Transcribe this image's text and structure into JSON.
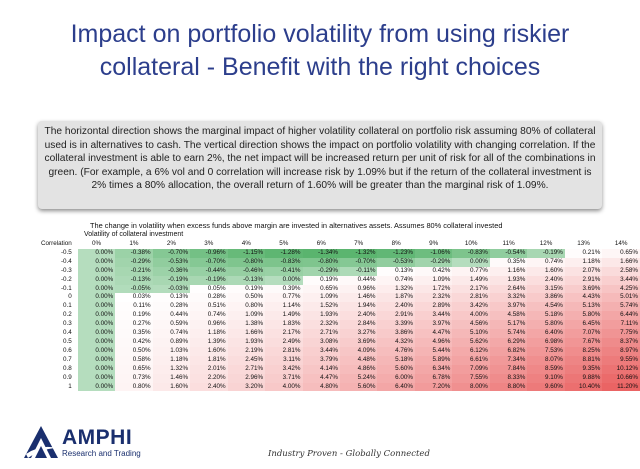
{
  "title_lines": [
    "Impact on portfolio volatility from using riskier",
    "collateral - Benefit with the right choices"
  ],
  "description": "The horizontal direction shows the marginal impact of higher volatility collateral on portfolio risk assuming 80% of collateral used is in alternatives to cash. The vertical direction shows the impact on portfolio volatility with changing correlation. If the collateral investment is able to earn 2%, the net impact will be increased return per unit of risk for all of the combinations in green. (For example, a 6% vol and 0 correlation will increase risk by 1.09% but if the return of the collateral investment is 2% times a 80% allocation, the overall return of 1.60% will be greater than the marginal risk of 1.09%.",
  "table_caption": "The change in volatility when excess funds above margin are invested in alternatives assets. Assumes 80% collateral invested",
  "table_subcaption": "Volatility of collateral investment",
  "table": {
    "corner_label": "Correlation",
    "columns": [
      "0%",
      "1%",
      "2%",
      "3%",
      "4%",
      "5%",
      "6%",
      "7%",
      "8%",
      "9%",
      "10%",
      "11%",
      "12%",
      "13%",
      "14%"
    ],
    "rows": [
      {
        "label": "-0.5",
        "values": [
          "0.00%",
          "-0.38%",
          "-0.70%",
          "-0.96%",
          "-1.15%",
          "-1.28%",
          "-1.34%",
          "-1.32%",
          "-1.23%",
          "-1.06%",
          "-0.83%",
          "-0.54%",
          "-0.19%",
          "0.21%",
          "0.65%"
        ]
      },
      {
        "label": "-0.4",
        "values": [
          "0.00%",
          "-0.29%",
          "-0.53%",
          "-0.70%",
          "-0.80%",
          "-0.83%",
          "-0.80%",
          "-0.70%",
          "-0.53%",
          "-0.29%",
          "0.00%",
          "0.35%",
          "0.74%",
          "1.18%",
          "1.66%"
        ]
      },
      {
        "label": "-0.3",
        "values": [
          "0.00%",
          "-0.21%",
          "-0.36%",
          "-0.44%",
          "-0.46%",
          "-0.41%",
          "-0.29%",
          "-0.11%",
          "0.13%",
          "0.42%",
          "0.77%",
          "1.16%",
          "1.60%",
          "2.07%",
          "2.58%"
        ]
      },
      {
        "label": "-0.2",
        "values": [
          "0.00%",
          "-0.13%",
          "-0.19%",
          "-0.19%",
          "-0.13%",
          "0.00%",
          "0.19%",
          "0.44%",
          "0.74%",
          "1.09%",
          "1.49%",
          "1.93%",
          "2.40%",
          "2.91%",
          "3.44%"
        ]
      },
      {
        "label": "-0.1",
        "values": [
          "0.00%",
          "-0.05%",
          "-0.03%",
          "0.05%",
          "0.19%",
          "0.39%",
          "0.65%",
          "0.96%",
          "1.32%",
          "1.72%",
          "2.17%",
          "2.64%",
          "3.15%",
          "3.69%",
          "4.25%"
        ]
      },
      {
        "label": "0",
        "values": [
          "0.00%",
          "0.03%",
          "0.13%",
          "0.28%",
          "0.50%",
          "0.77%",
          "1.09%",
          "1.46%",
          "1.87%",
          "2.32%",
          "2.81%",
          "3.32%",
          "3.86%",
          "4.43%",
          "5.01%"
        ]
      },
      {
        "label": "0.1",
        "values": [
          "0.00%",
          "0.11%",
          "0.28%",
          "0.51%",
          "0.80%",
          "1.14%",
          "1.52%",
          "1.94%",
          "2.40%",
          "2.89%",
          "3.42%",
          "3.97%",
          "4.54%",
          "5.13%",
          "5.74%"
        ]
      },
      {
        "label": "0.2",
        "values": [
          "0.00%",
          "0.19%",
          "0.44%",
          "0.74%",
          "1.09%",
          "1.49%",
          "1.93%",
          "2.40%",
          "2.91%",
          "3.44%",
          "4.00%",
          "4.58%",
          "5.18%",
          "5.80%",
          "6.44%"
        ]
      },
      {
        "label": "0.3",
        "values": [
          "0.00%",
          "0.27%",
          "0.59%",
          "0.96%",
          "1.38%",
          "1.83%",
          "2.32%",
          "2.84%",
          "3.39%",
          "3.97%",
          "4.56%",
          "5.17%",
          "5.80%",
          "6.45%",
          "7.11%"
        ]
      },
      {
        "label": "0.4",
        "values": [
          "0.00%",
          "0.35%",
          "0.74%",
          "1.18%",
          "1.66%",
          "2.17%",
          "2.71%",
          "3.27%",
          "3.86%",
          "4.47%",
          "5.10%",
          "5.74%",
          "6.40%",
          "7.07%",
          "7.75%"
        ]
      },
      {
        "label": "0.5",
        "values": [
          "0.00%",
          "0.42%",
          "0.89%",
          "1.39%",
          "1.93%",
          "2.49%",
          "3.08%",
          "3.69%",
          "4.32%",
          "4.96%",
          "5.62%",
          "6.29%",
          "6.98%",
          "7.67%",
          "8.37%"
        ]
      },
      {
        "label": "0.6",
        "values": [
          "0.00%",
          "0.50%",
          "1.03%",
          "1.60%",
          "2.19%",
          "2.81%",
          "3.44%",
          "4.09%",
          "4.76%",
          "5.44%",
          "6.12%",
          "6.82%",
          "7.53%",
          "8.25%",
          "8.97%"
        ]
      },
      {
        "label": "0.7",
        "values": [
          "0.00%",
          "0.58%",
          "1.18%",
          "1.81%",
          "2.45%",
          "3.11%",
          "3.79%",
          "4.48%",
          "5.18%",
          "5.89%",
          "6.61%",
          "7.34%",
          "8.07%",
          "8.81%",
          "9.55%"
        ]
      },
      {
        "label": "0.8",
        "values": [
          "0.00%",
          "0.65%",
          "1.32%",
          "2.01%",
          "2.71%",
          "3.42%",
          "4.14%",
          "4.86%",
          "5.60%",
          "6.34%",
          "7.09%",
          "7.84%",
          "8.59%",
          "9.35%",
          "10.12%"
        ]
      },
      {
        "label": "0.9",
        "values": [
          "0.00%",
          "0.73%",
          "1.46%",
          "2.20%",
          "2.96%",
          "3.71%",
          "4.47%",
          "5.24%",
          "6.00%",
          "6.78%",
          "7.55%",
          "8.33%",
          "9.10%",
          "9.88%",
          "10.66%"
        ]
      },
      {
        "label": "1",
        "values": [
          "0.00%",
          "0.80%",
          "1.60%",
          "2.40%",
          "3.20%",
          "4.00%",
          "4.80%",
          "5.60%",
          "6.40%",
          "7.20%",
          "8.00%",
          "8.80%",
          "9.60%",
          "10.40%",
          "11.20%"
        ]
      }
    ]
  },
  "logo": {
    "name": "AMPHI",
    "subtitle": "Research and Trading"
  },
  "tagline": "Industry Proven - Globally Connected",
  "colors": {
    "title": "#2c3e8c",
    "logo": "#1a2f6e",
    "green": "#5ab46e",
    "red": "#ea6464"
  }
}
